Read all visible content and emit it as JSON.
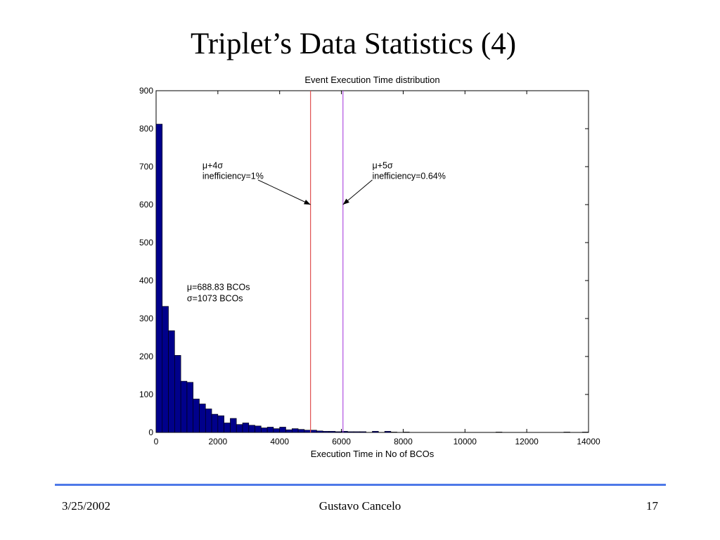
{
  "slide": {
    "title": "Triplet’s Data Statistics (4)"
  },
  "footer": {
    "date": "3/25/2002",
    "author": "Gustavo Cancelo",
    "page": "17"
  },
  "colors": {
    "bar_fill": "#00008b",
    "bar_stroke": "#000000",
    "line_mu4": "#e05050",
    "line_mu5": "#b050e0",
    "footer_rule": "#4e79e8"
  },
  "chart_data": {
    "type": "bar",
    "title": "Event Execution Time distribution",
    "xlabel": "Execution Time in No of BCOs",
    "ylabel": "",
    "xlim": [
      0,
      14000
    ],
    "ylim": [
      0,
      900
    ],
    "xticks": [
      0,
      2000,
      4000,
      6000,
      8000,
      10000,
      12000,
      14000
    ],
    "yticks": [
      0,
      100,
      200,
      300,
      400,
      500,
      600,
      700,
      800,
      900
    ],
    "grid": false,
    "bin_width": 200,
    "bins": [
      {
        "x": 0,
        "y": 812
      },
      {
        "x": 200,
        "y": 332
      },
      {
        "x": 400,
        "y": 268
      },
      {
        "x": 600,
        "y": 203
      },
      {
        "x": 800,
        "y": 135
      },
      {
        "x": 1000,
        "y": 132
      },
      {
        "x": 1200,
        "y": 88
      },
      {
        "x": 1400,
        "y": 75
      },
      {
        "x": 1600,
        "y": 62
      },
      {
        "x": 1800,
        "y": 48
      },
      {
        "x": 2000,
        "y": 44
      },
      {
        "x": 2200,
        "y": 25
      },
      {
        "x": 2400,
        "y": 37
      },
      {
        "x": 2600,
        "y": 21
      },
      {
        "x": 2800,
        "y": 25
      },
      {
        "x": 3000,
        "y": 19
      },
      {
        "x": 3200,
        "y": 17
      },
      {
        "x": 3400,
        "y": 12
      },
      {
        "x": 3600,
        "y": 14
      },
      {
        "x": 3800,
        "y": 10
      },
      {
        "x": 4000,
        "y": 14
      },
      {
        "x": 4200,
        "y": 7
      },
      {
        "x": 4400,
        "y": 10
      },
      {
        "x": 4600,
        "y": 8
      },
      {
        "x": 4800,
        "y": 6
      },
      {
        "x": 5000,
        "y": 6
      },
      {
        "x": 5200,
        "y": 4
      },
      {
        "x": 5400,
        "y": 3
      },
      {
        "x": 5600,
        "y": 3
      },
      {
        "x": 5800,
        "y": 2
      },
      {
        "x": 6000,
        "y": 3
      },
      {
        "x": 6200,
        "y": 2
      },
      {
        "x": 6400,
        "y": 2
      },
      {
        "x": 6600,
        "y": 2
      },
      {
        "x": 7000,
        "y": 3
      },
      {
        "x": 7400,
        "y": 3
      },
      {
        "x": 7600,
        "y": 1
      },
      {
        "x": 8000,
        "y": 1
      },
      {
        "x": 11000,
        "y": 1
      },
      {
        "x": 13200,
        "y": 1
      },
      {
        "x": 13800,
        "y": 1
      }
    ],
    "vlines": [
      {
        "x": 5000,
        "color": "#e05050"
      },
      {
        "x": 6050,
        "color": "#b050e0"
      }
    ],
    "annotations": {
      "mu4": {
        "line1": "μ+4σ",
        "line2": "inefficiency=1%",
        "text_x": 1500,
        "text_y": 695,
        "arrow_from": [
          3300,
          665
        ],
        "arrow_to": [
          5000,
          600
        ]
      },
      "mu5": {
        "line1": "μ+5σ",
        "line2": "inefficiency=0.64%",
        "text_x": 7000,
        "text_y": 695,
        "arrow_from": [
          7000,
          665
        ],
        "arrow_to": [
          6050,
          600
        ]
      },
      "stats": {
        "line1": "μ=688.83 BCOs",
        "line2": "σ=1073 BCOs",
        "text_x": 1000,
        "text_y": 375
      }
    }
  }
}
